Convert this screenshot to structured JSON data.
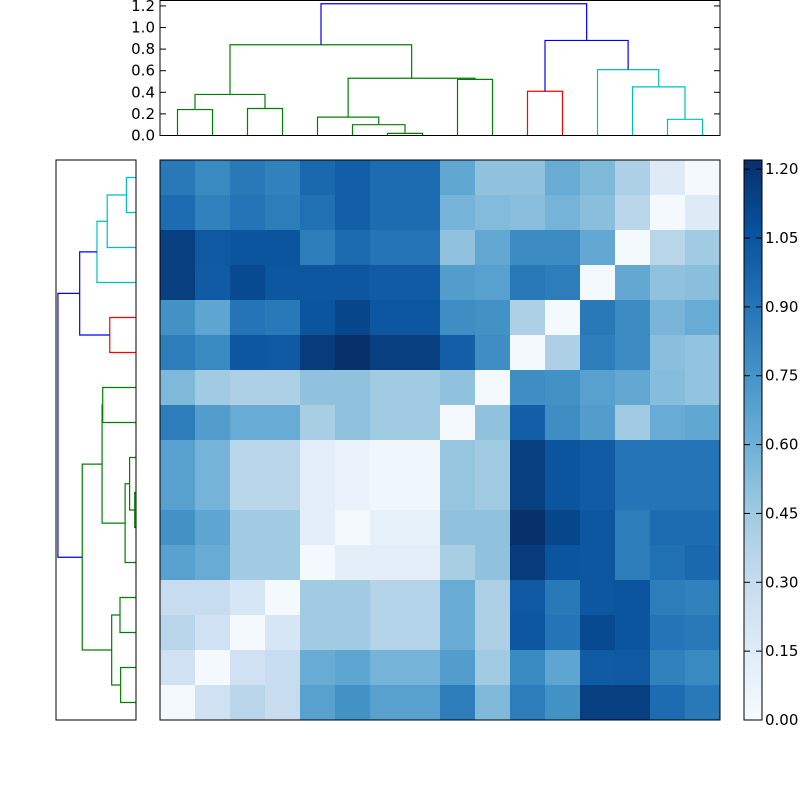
{
  "chart_data": {
    "type": "heatmap",
    "colormap": "Blues",
    "value_range": [
      0,
      1.22
    ],
    "top_dendrogram": {
      "ylim": [
        0,
        1.25
      ],
      "yticks": [
        "0.0",
        "0.2",
        "0.4",
        "0.6",
        "0.8",
        "1.0",
        "1.2"
      ],
      "links": [
        {
          "color": "#008000",
          "x1": 0.5,
          "x2": 1.5,
          "h1": 0.0,
          "h2": 0.0,
          "h": 0.24
        },
        {
          "color": "#008000",
          "x1": 2.5,
          "x2": 3.5,
          "h1": 0.0,
          "h2": 0.0,
          "h": 0.25
        },
        {
          "color": "#008000",
          "x1": 1.0,
          "x2": 3.0,
          "h1": 0.24,
          "h2": 0.25,
          "h": 0.38
        },
        {
          "color": "#008000",
          "x1": 6.5,
          "x2": 7.5,
          "h1": 0.0,
          "h2": 0.0,
          "h": 0.02
        },
        {
          "color": "#008000",
          "x1": 5.5,
          "x2": 7.0,
          "h1": 0.0,
          "h2": 0.02,
          "h": 0.1
        },
        {
          "color": "#008000",
          "x1": 4.5,
          "x2": 6.25,
          "h1": 0.0,
          "h2": 0.1,
          "h": 0.17
        },
        {
          "color": "#008000",
          "x1": 8.5,
          "x2": 9.5,
          "h1": 0.0,
          "h2": 0.0,
          "h": 0.52
        },
        {
          "color": "#008000",
          "x1": 5.375,
          "x2": 9.0,
          "h1": 0.17,
          "h2": 0.52,
          "h": 0.53
        },
        {
          "color": "#008000",
          "x1": 2.0,
          "x2": 7.19,
          "h1": 0.38,
          "h2": 0.53,
          "h": 0.84
        },
        {
          "color": "#ff0000",
          "x1": 10.5,
          "x2": 11.5,
          "h1": 0.0,
          "h2": 0.0,
          "h": 0.41
        },
        {
          "color": "#00bfbf",
          "x1": 14.5,
          "x2": 15.5,
          "h1": 0.0,
          "h2": 0.0,
          "h": 0.15
        },
        {
          "color": "#00bfbf",
          "x1": 13.5,
          "x2": 15.0,
          "h1": 0.0,
          "h2": 0.15,
          "h": 0.45
        },
        {
          "color": "#00bfbf",
          "x1": 12.5,
          "x2": 14.25,
          "h1": 0.0,
          "h2": 0.45,
          "h": 0.61
        },
        {
          "color": "#0000ff",
          "x1": 11.0,
          "x2": 13.375,
          "h1": 0.41,
          "h2": 0.61,
          "h": 0.88
        },
        {
          "color": "#0000ff",
          "x1": 4.6,
          "x2": 12.19,
          "h1": 0.84,
          "h2": 0.88,
          "h": 1.22
        }
      ]
    },
    "left_dendrogram": {
      "xlim": [
        0,
        1.25
      ],
      "links": [
        {
          "color": "#00bfbf",
          "y1": 0.5,
          "y2": 1.5,
          "h1": 0.0,
          "h2": 0.0,
          "h": 0.15
        },
        {
          "color": "#00bfbf",
          "y1": 1.0,
          "y2": 2.5,
          "h1": 0.15,
          "h2": 0.0,
          "h": 0.45
        },
        {
          "color": "#00bfbf",
          "y1": 1.75,
          "y2": 3.5,
          "h1": 0.45,
          "h2": 0.0,
          "h": 0.61
        },
        {
          "color": "#ff0000",
          "y1": 4.5,
          "y2": 5.5,
          "h1": 0.0,
          "h2": 0.0,
          "h": 0.41
        },
        {
          "color": "#0000ff",
          "y1": 2.625,
          "y2": 5.0,
          "h1": 0.61,
          "h2": 0.41,
          "h": 0.88
        },
        {
          "color": "#008000",
          "y1": 6.5,
          "y2": 7.5,
          "h1": 0.0,
          "h2": 0.0,
          "h": 0.52
        },
        {
          "color": "#008000",
          "y1": 9.5,
          "y2": 10.5,
          "h1": 0.0,
          "h2": 0.0,
          "h": 0.02
        },
        {
          "color": "#008000",
          "y1": 8.5,
          "y2": 10.0,
          "h1": 0.0,
          "h2": 0.02,
          "h": 0.1
        },
        {
          "color": "#008000",
          "y1": 9.25,
          "y2": 11.5,
          "h1": 0.1,
          "h2": 0.0,
          "h": 0.17
        },
        {
          "color": "#008000",
          "y1": 7.0,
          "y2": 10.375,
          "h1": 0.52,
          "h2": 0.17,
          "h": 0.53
        },
        {
          "color": "#008000",
          "y1": 12.5,
          "y2": 13.5,
          "h1": 0.0,
          "h2": 0.0,
          "h": 0.25
        },
        {
          "color": "#008000",
          "y1": 14.5,
          "y2": 15.5,
          "h1": 0.0,
          "h2": 0.0,
          "h": 0.24
        },
        {
          "color": "#008000",
          "y1": 13.0,
          "y2": 15.0,
          "h1": 0.25,
          "h2": 0.24,
          "h": 0.38
        },
        {
          "color": "#008000",
          "y1": 8.69,
          "y2": 14.0,
          "h1": 0.53,
          "h2": 0.38,
          "h": 0.84
        },
        {
          "color": "#0000ff",
          "y1": 3.81,
          "y2": 11.35,
          "h1": 0.88,
          "h2": 0.84,
          "h": 1.22
        }
      ]
    },
    "matrix": [
      [
        0.88,
        0.8,
        0.88,
        0.84,
        0.96,
        1.0,
        0.94,
        0.94,
        0.65,
        0.5,
        0.5,
        0.62,
        0.55,
        0.4,
        0.15,
        0.02
      ],
      [
        0.94,
        0.84,
        0.9,
        0.86,
        0.92,
        1.0,
        0.94,
        0.94,
        0.58,
        0.54,
        0.52,
        0.58,
        0.52,
        0.35,
        0.02,
        0.15
      ],
      [
        1.15,
        1.03,
        1.05,
        1.05,
        0.86,
        0.95,
        0.9,
        0.9,
        0.5,
        0.64,
        0.79,
        0.79,
        0.64,
        0.02,
        0.36,
        0.45
      ],
      [
        1.15,
        1.02,
        1.1,
        1.04,
        1.04,
        1.04,
        1.02,
        1.02,
        0.7,
        0.68,
        0.88,
        0.86,
        0.02,
        0.64,
        0.5,
        0.52
      ],
      [
        0.76,
        0.66,
        0.9,
        0.88,
        1.05,
        1.12,
        1.04,
        1.04,
        0.78,
        0.76,
        0.4,
        0.02,
        0.88,
        0.79,
        0.57,
        0.62
      ],
      [
        0.86,
        0.8,
        1.04,
        1.03,
        1.17,
        1.22,
        1.15,
        1.15,
        1.0,
        0.78,
        0.02,
        0.4,
        0.86,
        0.79,
        0.52,
        0.49
      ],
      [
        0.55,
        0.45,
        0.4,
        0.4,
        0.5,
        0.5,
        0.45,
        0.45,
        0.5,
        0.02,
        0.78,
        0.76,
        0.68,
        0.64,
        0.53,
        0.49
      ],
      [
        0.86,
        0.7,
        0.62,
        0.62,
        0.42,
        0.5,
        0.45,
        0.45,
        0.02,
        0.5,
        1.0,
        0.78,
        0.7,
        0.45,
        0.62,
        0.65
      ],
      [
        0.68,
        0.58,
        0.35,
        0.35,
        0.12,
        0.08,
        0.05,
        0.05,
        0.48,
        0.45,
        1.15,
        1.05,
        1.02,
        0.9,
        0.9,
        0.9
      ],
      [
        0.68,
        0.58,
        0.35,
        0.35,
        0.12,
        0.08,
        0.05,
        0.05,
        0.48,
        0.45,
        1.15,
        1.05,
        1.02,
        0.9,
        0.9,
        0.9
      ],
      [
        0.76,
        0.66,
        0.45,
        0.45,
        0.12,
        0.02,
        0.1,
        0.1,
        0.5,
        0.5,
        1.22,
        1.12,
        1.04,
        0.86,
        0.94,
        0.94
      ],
      [
        0.68,
        0.62,
        0.45,
        0.45,
        0.02,
        0.12,
        0.12,
        0.12,
        0.42,
        0.5,
        1.17,
        1.05,
        1.04,
        0.86,
        0.92,
        0.96
      ],
      [
        0.3,
        0.3,
        0.2,
        0.02,
        0.45,
        0.45,
        0.38,
        0.38,
        0.62,
        0.4,
        1.03,
        0.88,
        1.04,
        1.05,
        0.86,
        0.84
      ],
      [
        0.36,
        0.25,
        0.02,
        0.2,
        0.45,
        0.45,
        0.38,
        0.38,
        0.62,
        0.4,
        1.04,
        0.9,
        1.1,
        1.05,
        0.9,
        0.88
      ],
      [
        0.25,
        0.02,
        0.25,
        0.3,
        0.62,
        0.66,
        0.58,
        0.58,
        0.7,
        0.45,
        0.8,
        0.66,
        1.02,
        1.03,
        0.84,
        0.8
      ],
      [
        0.02,
        0.25,
        0.36,
        0.3,
        0.68,
        0.76,
        0.68,
        0.68,
        0.86,
        0.55,
        0.86,
        0.76,
        1.15,
        1.15,
        0.94,
        0.88
      ]
    ],
    "colorbar": {
      "ticks": [
        "0.00",
        "0.15",
        "0.30",
        "0.45",
        "0.60",
        "0.75",
        "0.90",
        "1.05",
        "1.20"
      ],
      "range": [
        0,
        1.22
      ]
    }
  }
}
